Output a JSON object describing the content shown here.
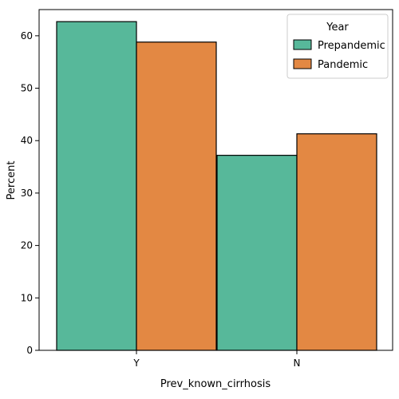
{
  "chart_data": {
    "type": "bar",
    "categories": [
      "Y",
      "N"
    ],
    "series": [
      {
        "name": "Prepandemic",
        "values": [
          62.7,
          37.2
        ],
        "color": "#57b89a"
      },
      {
        "name": "Pandemic",
        "values": [
          58.8,
          41.3
        ],
        "color": "#e38843"
      }
    ],
    "xlabel": "Prev_known_cirrhosis",
    "ylabel": "Percent",
    "ylim": [
      0,
      65
    ],
    "yticks": [
      0,
      10,
      20,
      30,
      40,
      50,
      60
    ],
    "grid": false,
    "legend": {
      "title": "Year",
      "placement": "top-right"
    }
  }
}
